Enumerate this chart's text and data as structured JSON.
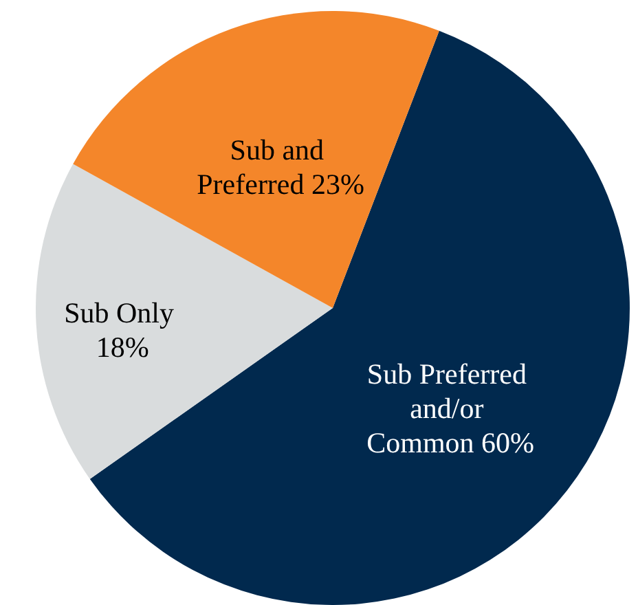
{
  "chart_data": {
    "type": "pie",
    "categories": [
      "Sub Preferred and/or Common",
      "Sub Only",
      "Sub and Preferred"
    ],
    "values": [
      60,
      18,
      23
    ],
    "colors": [
      "#01294e",
      "#d9dcdd",
      "#f4862a"
    ],
    "value_labels": [
      "60%",
      "18%",
      "23%"
    ]
  }
}
